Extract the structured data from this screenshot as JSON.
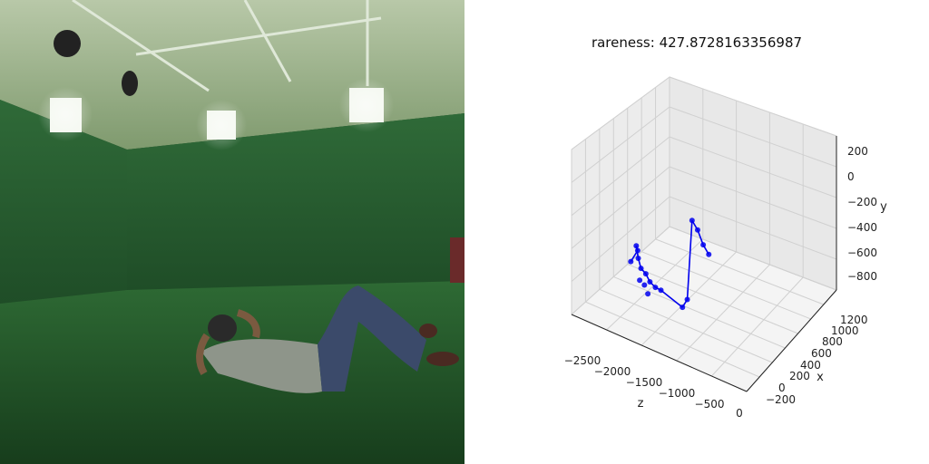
{
  "chart_data": {
    "type": "scatter",
    "title": "rareness: 427.8728163356987",
    "projection": "3d",
    "xlabel": "z",
    "ylabel": "x",
    "zlabel": "y",
    "z_ticks": [
      "−2500",
      "−2000",
      "−1500",
      "−1000",
      "−500",
      "0"
    ],
    "x_ticks": [
      "−200",
      "0",
      "200",
      "400",
      "600",
      "800",
      "1000",
      "1200"
    ],
    "y_ticks": [
      "200",
      "0",
      "−200",
      "−400",
      "−600",
      "−800"
    ],
    "grid": true,
    "marker_color": "#0000ee",
    "series": [
      {
        "points": [
          [
            -2350,
            500,
            -850
          ],
          [
            -2300,
            450,
            -780
          ],
          [
            -2250,
            520,
            -700
          ],
          [
            -2180,
            560,
            -760
          ],
          [
            -2100,
            600,
            -800
          ],
          [
            -2050,
            580,
            -840
          ],
          [
            -1950,
            620,
            -860
          ],
          [
            -1850,
            640,
            -870
          ],
          [
            -1750,
            660,
            -860
          ],
          [
            -1300,
            800,
            -820
          ],
          [
            -1250,
            780,
            -760
          ],
          [
            -1200,
            760,
            -160
          ],
          [
            -1100,
            780,
            -200
          ],
          [
            -1000,
            800,
            -280
          ],
          [
            -900,
            820,
            -320
          ],
          [
            -2200,
            520,
            -950
          ],
          [
            -1900,
            700,
            -900
          ],
          [
            -2000,
            650,
            -880
          ]
        ]
      }
    ]
  }
}
